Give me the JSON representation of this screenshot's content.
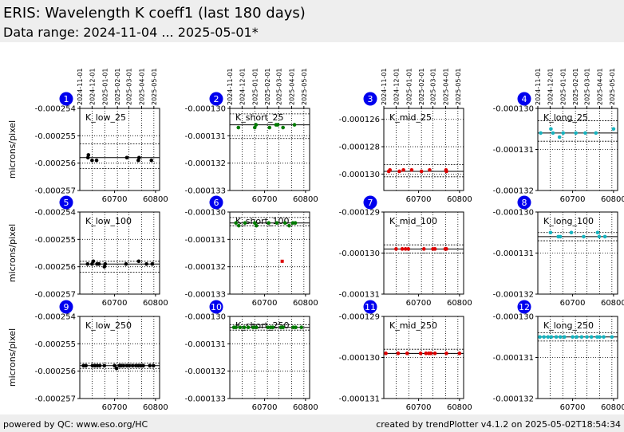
{
  "header": {
    "title": "ERIS: Wavelength K coeff1 (last 180 days)",
    "subtitle": "Data range: 2024-11-04 ... 2025-05-01*"
  },
  "footer": {
    "left": "powered by QC: www.eso.org/HC",
    "right": "created by trendPlotter v4.1.2 on 2025-05-02T18:54:34"
  },
  "colors": {
    "black": "#000000",
    "green": "#007a00",
    "red": "#dd0000",
    "cyan": "#17b3bf",
    "badge": "#0000ee"
  },
  "chart_data": {
    "type": "scatter",
    "ylabel": "microns/pixel",
    "x_ticks": [
      60700,
      60800
    ],
    "date_ticks": [
      "2024-11-01",
      "2024-12-01",
      "2025-01-01",
      "2025-02-01",
      "2025-03-01",
      "2025-04-01",
      "2025-05-01"
    ],
    "date_tick_mjd": [
      60615,
      60645,
      60676,
      60707,
      60735,
      60766,
      60796
    ],
    "xlim": [
      60615,
      60810
    ],
    "panels": [
      {
        "id": "1",
        "label": "K_low_25",
        "color": "black",
        "ylim": [
          -0.000257,
          -0.000254
        ],
        "yticks": [
          "-0.000254",
          "-0.000255",
          "-0.000256",
          "-0.000257"
        ],
        "yvals": [
          -0.000254,
          -0.000255,
          -0.000256,
          -0.000257
        ],
        "median": -0.0002558,
        "band": [
          -0.0002553,
          -0.0002562
        ],
        "points": [
          [
            60635,
            -0.0002558
          ],
          [
            60636,
            -0.0002557
          ],
          [
            60645,
            -0.0002559
          ],
          [
            60656,
            -0.0002559
          ],
          [
            60730,
            -0.0002558
          ],
          [
            60758,
            -0.0002559
          ],
          [
            60760,
            -0.0002558
          ],
          [
            60790,
            -0.0002559
          ]
        ]
      },
      {
        "id": "2",
        "label": "K_short_25",
        "color": "green",
        "ylim": [
          -0.000133,
          -0.00013
        ],
        "yticks": [
          "-0.000130",
          "-0.000131",
          "-0.000132",
          "-0.000133"
        ],
        "yvals": [
          -0.00013,
          -0.000131,
          -0.000132,
          -0.000133
        ],
        "median": -0.0001306,
        "band": [
          -0.0001302,
          -0.0001311
        ],
        "points": [
          [
            60636,
            -0.0001307
          ],
          [
            60676,
            -0.0001307
          ],
          [
            60679,
            -0.0001306
          ],
          [
            60712,
            -0.0001307
          ],
          [
            60728,
            -0.0001306
          ],
          [
            60732,
            -0.0001306
          ],
          [
            60745,
            -0.0001307
          ],
          [
            60773,
            -0.0001306
          ]
        ]
      },
      {
        "id": "3",
        "label": "K_mid_25",
        "color": "red",
        "ylim": [
          -0.0001312,
          -0.0001252
        ],
        "yticks": [
          "-0.000126",
          "-0.000128",
          "-0.000130"
        ],
        "yvals": [
          -0.000126,
          -0.000128,
          -0.00013
        ],
        "median": -0.0001298,
        "band": [
          -0.0001293,
          -0.0001302
        ],
        "points": [
          [
            60627,
            -0.0001298
          ],
          [
            60630,
            -0.0001297
          ],
          [
            60653,
            -0.0001298
          ],
          [
            60663,
            -0.0001297
          ],
          [
            60683,
            -0.0001297
          ],
          [
            60707,
            -0.0001298
          ],
          [
            60727,
            -0.0001297
          ],
          [
            60767,
            -0.0001297
          ],
          [
            60768,
            -0.0001298
          ]
        ]
      },
      {
        "id": "4",
        "label": "K_long_25",
        "color": "cyan",
        "ylim": [
          -0.000132,
          -0.00013
        ],
        "yticks": [
          "-0.000130",
          "-0.000131",
          "-0.000132"
        ],
        "yvals": [
          -0.00013,
          -0.000131,
          -0.000132
        ],
        "median": -0.0001306,
        "band": [
          -0.0001303,
          -0.0001308
        ],
        "points": [
          [
            60622,
            -0.0001306
          ],
          [
            60647,
            -0.0001305
          ],
          [
            60652,
            -0.0001306
          ],
          [
            60668,
            -0.0001307
          ],
          [
            60677,
            -0.0001306
          ],
          [
            60708,
            -0.0001306
          ],
          [
            60731,
            -0.0001306
          ],
          [
            60757,
            -0.0001306
          ],
          [
            60800,
            -0.0001305
          ]
        ]
      },
      {
        "id": "5",
        "label": "K_low_100",
        "color": "black",
        "ylim": [
          -0.000257,
          -0.000254
        ],
        "yticks": [
          "-0.000254",
          "-0.000255",
          "-0.000256",
          "-0.000257"
        ],
        "yvals": [
          -0.000254,
          -0.000255,
          -0.000256,
          -0.000257
        ],
        "median": -0.0002559,
        "band": [
          -0.0002558,
          -0.0002562
        ],
        "points": [
          [
            60634,
            -0.0002559
          ],
          [
            60645,
            -0.0002559
          ],
          [
            60648,
            -0.0002558
          ],
          [
            60657,
            -0.0002559
          ],
          [
            60662,
            -0.0002559
          ],
          [
            60675,
            -0.000256
          ],
          [
            60677,
            -0.0002559
          ],
          [
            60728,
            -0.0002559
          ],
          [
            60759,
            -0.0002558
          ],
          [
            60778,
            -0.0002559
          ],
          [
            60792,
            -0.0002559
          ]
        ]
      },
      {
        "id": "6",
        "label": "K_short_100",
        "color": "green",
        "ylim": [
          -0.000133,
          -0.00013
        ],
        "yticks": [
          "-0.000130",
          "-0.000131",
          "-0.000132",
          "-0.000133"
        ],
        "yvals": [
          -0.00013,
          -0.000131,
          -0.000132,
          -0.000133
        ],
        "median": -0.0001304,
        "band": [
          -0.0001302,
          -0.0001305
        ],
        "points": [
          [
            60630,
            -0.0001304
          ],
          [
            60637,
            -0.0001305
          ],
          [
            60652,
            -0.0001304
          ],
          [
            60676,
            -0.0001304
          ],
          [
            60680,
            -0.0001305
          ],
          [
            60710,
            -0.0001304
          ],
          [
            60730,
            -0.0001304
          ],
          [
            60750,
            -0.0001304
          ],
          [
            60760,
            -0.0001305
          ],
          [
            60769,
            -0.0001304
          ],
          [
            60775,
            -0.0001304
          ]
        ],
        "outliers": [
          [
            60743,
            -0.0001318
          ]
        ]
      },
      {
        "id": "7",
        "label": "K_mid_100",
        "color": "red",
        "ylim": [
          -0.000131,
          -0.000129
        ],
        "yticks": [
          "-0.000129",
          "-0.000130",
          "-0.000131"
        ],
        "yvals": [
          -0.000129,
          -0.00013,
          -0.000131
        ],
        "median": -0.0001299,
        "band": [
          -0.0001298,
          -0.00013
        ],
        "points": [
          [
            60645,
            -0.0001299
          ],
          [
            60660,
            -0.0001299
          ],
          [
            60668,
            -0.0001299
          ],
          [
            60675,
            -0.0001299
          ],
          [
            60713,
            -0.0001299
          ],
          [
            60735,
            -0.0001299
          ],
          [
            60740,
            -0.0001299
          ],
          [
            60765,
            -0.0001299
          ],
          [
            60768,
            -0.0001299
          ]
        ]
      },
      {
        "id": "8",
        "label": "K_long_100",
        "color": "cyan",
        "ylim": [
          -0.000132,
          -0.00013
        ],
        "yticks": [
          "-0.000130",
          "-0.000131",
          "-0.000132"
        ],
        "yvals": [
          -0.00013,
          -0.000131,
          -0.000132
        ],
        "median": -0.0001306,
        "band": [
          -0.0001305,
          -0.0001307
        ],
        "points": [
          [
            60646,
            -0.0001305
          ],
          [
            60665,
            -0.0001306
          ],
          [
            60670,
            -0.0001306
          ],
          [
            60697,
            -0.0001305
          ],
          [
            60727,
            -0.0001306
          ],
          [
            60761,
            -0.0001305
          ],
          [
            60765,
            -0.0001306
          ],
          [
            60779,
            -0.0001306
          ]
        ]
      },
      {
        "id": "9",
        "label": "K_low_250",
        "color": "black",
        "ylim": [
          -0.000257,
          -0.000254
        ],
        "yticks": [
          "-0.000254",
          "-0.000255",
          "-0.000256",
          "-0.000257"
        ],
        "yvals": [
          -0.000254,
          -0.000255,
          -0.000256,
          -0.000257
        ],
        "median": -0.0002558,
        "band": [
          -0.0002557,
          -0.0002559
        ],
        "points": [
          [
            60624,
            -0.0002558
          ],
          [
            60630,
            -0.0002558
          ],
          [
            60646,
            -0.0002558
          ],
          [
            60652,
            -0.0002558
          ],
          [
            60658,
            -0.0002558
          ],
          [
            60664,
            -0.0002558
          ],
          [
            60675,
            -0.0002558
          ],
          [
            60700,
            -0.0002558
          ],
          [
            60705,
            -0.0002559
          ],
          [
            60712,
            -0.0002558
          ],
          [
            60716,
            -0.0002558
          ],
          [
            60722,
            -0.0002558
          ],
          [
            60730,
            -0.0002558
          ],
          [
            60736,
            -0.0002558
          ],
          [
            60744,
            -0.0002558
          ],
          [
            60752,
            -0.0002558
          ],
          [
            60758,
            -0.0002558
          ],
          [
            60764,
            -0.0002558
          ],
          [
            60770,
            -0.0002558
          ],
          [
            60786,
            -0.0002558
          ],
          [
            60795,
            -0.0002558
          ]
        ]
      },
      {
        "id": "10",
        "label": "K_short_250",
        "color": "green",
        "ylim": [
          -0.000133,
          -0.00013
        ],
        "yticks": [
          "-0.000130",
          "-0.000131",
          "-0.000132",
          "-0.000133"
        ],
        "yvals": [
          -0.00013,
          -0.000131,
          -0.000132,
          -0.000133
        ],
        "median": -0.0001304,
        "band": [
          -0.0001303,
          -0.0001305
        ],
        "points": [
          [
            60625,
            -0.0001304
          ],
          [
            60630,
            -0.0001304
          ],
          [
            60640,
            -0.0001304
          ],
          [
            60650,
            -0.0001304
          ],
          [
            60660,
            -0.0001304
          ],
          [
            60672,
            -0.0001304
          ],
          [
            60680,
            -0.0001304
          ],
          [
            60708,
            -0.0001304
          ],
          [
            60715,
            -0.0001304
          ],
          [
            60720,
            -0.0001304
          ],
          [
            60740,
            -0.0001304
          ],
          [
            60745,
            -0.0001304
          ],
          [
            60770,
            -0.0001304
          ],
          [
            60776,
            -0.0001304
          ],
          [
            60790,
            -0.0001304
          ]
        ]
      },
      {
        "id": "11",
        "label": "K_mid_250",
        "color": "red",
        "ylim": [
          -0.000131,
          -0.000129
        ],
        "yticks": [
          "-0.000129",
          "-0.000130",
          "-0.000131"
        ],
        "yvals": [
          -0.000129,
          -0.00013,
          -0.000131
        ],
        "median": -0.0001299,
        "band": [
          -0.0001298,
          -0.0001299
        ],
        "points": [
          [
            60620,
            -0.0001299
          ],
          [
            60650,
            -0.0001299
          ],
          [
            60672,
            -0.0001299
          ],
          [
            60705,
            -0.0001299
          ],
          [
            60718,
            -0.0001299
          ],
          [
            60725,
            -0.0001299
          ],
          [
            60730,
            -0.0001299
          ],
          [
            60740,
            -0.0001299
          ],
          [
            60768,
            -0.0001299
          ],
          [
            60800,
            -0.0001299
          ]
        ]
      },
      {
        "id": "12",
        "label": "K_long_250",
        "color": "cyan",
        "ylim": [
          -0.000132,
          -0.00013
        ],
        "yticks": [
          "-0.000130",
          "-0.000131",
          "-0.000132"
        ],
        "yvals": [
          -0.00013,
          -0.000131,
          -0.000132
        ],
        "median": -0.0001305,
        "band": [
          -0.0001304,
          -0.0001306
        ],
        "points": [
          [
            60620,
            -0.0001305
          ],
          [
            60630,
            -0.0001305
          ],
          [
            60640,
            -0.0001305
          ],
          [
            60648,
            -0.0001305
          ],
          [
            60660,
            -0.0001305
          ],
          [
            60670,
            -0.0001305
          ],
          [
            60680,
            -0.0001305
          ],
          [
            60700,
            -0.0001305
          ],
          [
            60710,
            -0.0001305
          ],
          [
            60722,
            -0.0001305
          ],
          [
            60735,
            -0.0001305
          ],
          [
            60746,
            -0.0001305
          ],
          [
            60760,
            -0.0001305
          ],
          [
            60766,
            -0.0001305
          ],
          [
            60776,
            -0.0001305
          ],
          [
            60796,
            -0.0001305
          ]
        ]
      }
    ]
  }
}
